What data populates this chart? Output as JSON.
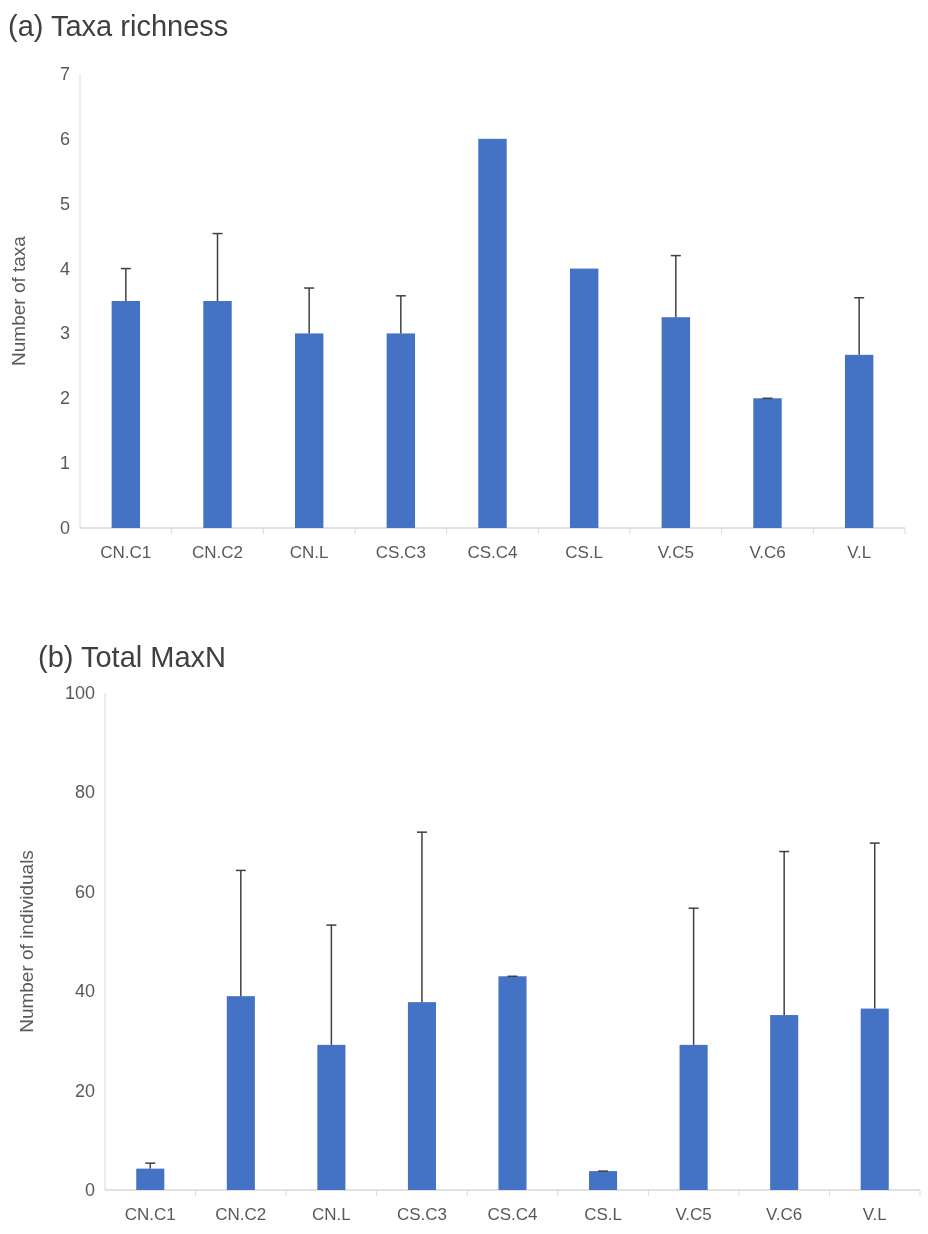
{
  "chart_data": [
    {
      "type": "bar",
      "title": "(a) Taxa richness",
      "ylabel": "Number of taxa",
      "categories": [
        "CN.C1",
        "CN.C2",
        "CN.L",
        "CS.C3",
        "CS.C4",
        "CS.L",
        "V.C5",
        "V.C6",
        "V.L"
      ],
      "series": [
        {
          "color": "#4472c4",
          "values": [
            3.5,
            3.5,
            3,
            3,
            6,
            4,
            3.25,
            2,
            2.67
          ],
          "errors": [
            [
              3.5,
              4
            ],
            [
              3.5,
              4.54
            ],
            [
              3,
              3.7
            ],
            [
              3,
              3.58
            ],
            null,
            null,
            [
              3.25,
              4.2
            ],
            [
              2,
              2
            ],
            [
              2.67,
              3.55
            ]
          ]
        }
      ],
      "ylim": [
        0,
        7
      ],
      "yticks": [
        0,
        1,
        2,
        3,
        4,
        5,
        6,
        7
      ],
      "grid": false
    },
    {
      "type": "bar",
      "title": "(b) Total MaxN",
      "ylabel": "Number of individuals",
      "categories": [
        "CN.C1",
        "CN.C2",
        "CN.L",
        "CS.C3",
        "CS.C4",
        "CS.L",
        "V.C5",
        "V.C6",
        "V.L"
      ],
      "series": [
        {
          "color": "#4472c4",
          "values": [
            4.3,
            39,
            29.2,
            37.8,
            43,
            3.8,
            29.2,
            35.2,
            36.5
          ],
          "errors": [
            [
              4.3,
              5.4
            ],
            [
              39,
              64.3
            ],
            [
              29.2,
              53.3
            ],
            [
              37.8,
              72
            ],
            [
              43,
              43
            ],
            [
              3.8,
              3.8
            ],
            [
              29.2,
              56.7
            ],
            [
              35.2,
              68.1
            ],
            [
              36.5,
              69.8
            ]
          ]
        }
      ],
      "ylim": [
        0,
        100
      ],
      "yticks": [
        0,
        20,
        40,
        60,
        80,
        100
      ],
      "grid": false
    }
  ]
}
